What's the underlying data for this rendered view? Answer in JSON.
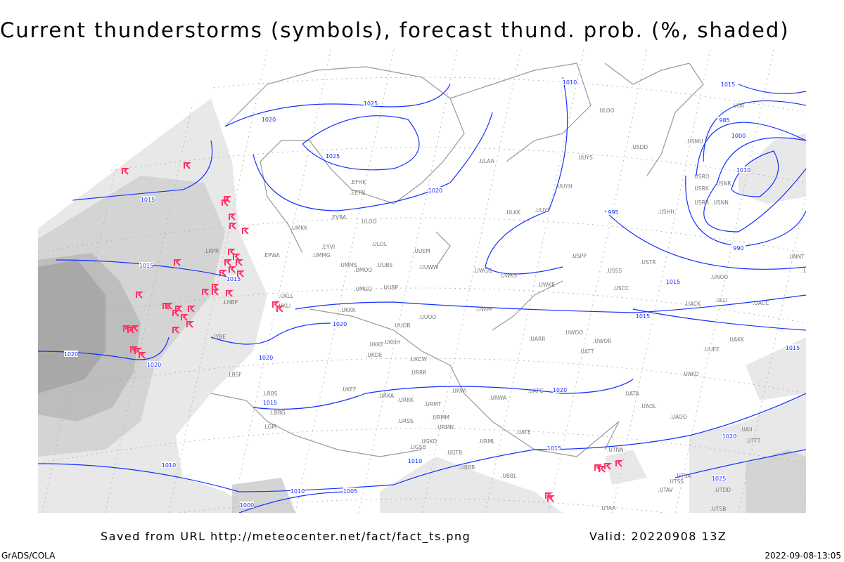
{
  "title": "Current thunderstorms (symbols), forecast thund. prob. (%, shaded)",
  "footer": {
    "source": "Saved from URL http://meteocenter.net/fact/fact_ts.png",
    "valid": "Valid: 20220908 13Z",
    "software": "GrADS/COLA",
    "generated": "2022-09-08-13:05"
  },
  "map": {
    "contour_color": "#1530ff",
    "coast_color": "#999999",
    "shade_colors": [
      "#e8e8e8",
      "#d4d4d4",
      "#bdbdbd",
      "#a8a8a8"
    ],
    "thunderstorm_symbol_color": "#ff3366",
    "thunderstorm_icon": "thunderstorm-symbol",
    "isobar_labels": [
      "1025",
      "1020",
      "1025",
      "1020",
      "1010",
      "1015",
      "1015",
      "1015",
      "1020",
      "1020",
      "1020",
      "1020",
      "1020",
      "1015",
      "1015",
      "1010",
      "1010",
      "1010",
      "1005",
      "1000",
      "995",
      "990",
      "985",
      "1000",
      "1010",
      "1015",
      "1015",
      "1015",
      "1015",
      "1020",
      "1025"
    ],
    "stations": [
      "ULOO",
      "ULAA",
      "UUYS",
      "UUYH",
      "ULKK",
      "UUYY",
      "USDD",
      "USHH",
      "USMU",
      "USRO",
      "USRK",
      "USNR",
      "USRR",
      "USNN",
      "UOII",
      "EFHK",
      "EETN",
      "EVRA",
      "ULOO",
      "ULOL",
      "UMKK",
      "EYVI",
      "UMMG",
      "UMMS",
      "UMOO",
      "UUBS",
      "UUEM",
      "UUWW",
      "UWGG",
      "UWKS",
      "UWKE",
      "UUOO",
      "UUBP",
      "UMGG",
      "UKKK",
      "UUOB",
      "UWPP",
      "USPP",
      "USSS",
      "USTR",
      "UNOO",
      "USCC",
      "UACK",
      "UACC",
      "UAKK",
      "UATT",
      "UWOO",
      "UARR",
      "UWOR",
      "UKHH",
      "UKKE",
      "UKDE",
      "UKCW",
      "URRR",
      "UKFF",
      "URKA",
      "URKK",
      "URMT",
      "URWI",
      "URWA",
      "URMM",
      "URMN",
      "URSS",
      "UGKO",
      "UGSB",
      "UGTB",
      "UBBB",
      "URML",
      "UATE",
      "UATG",
      "UATA",
      "UAOL",
      "UAOO",
      "UAKD",
      "UTNN",
      "UTSA",
      "UTSS",
      "UTAV",
      "UTAA",
      "UBBL",
      "UKLL",
      "EPWA",
      "LKPR",
      "LYBE",
      "LBSF",
      "LRBS",
      "LGIR",
      "LHBP",
      "UKLI",
      "LBBG",
      "ULLI",
      "UUEE",
      "UNNT",
      "UNBB",
      "UAII",
      "UTTT",
      "UTDD",
      "UTSB"
    ]
  }
}
